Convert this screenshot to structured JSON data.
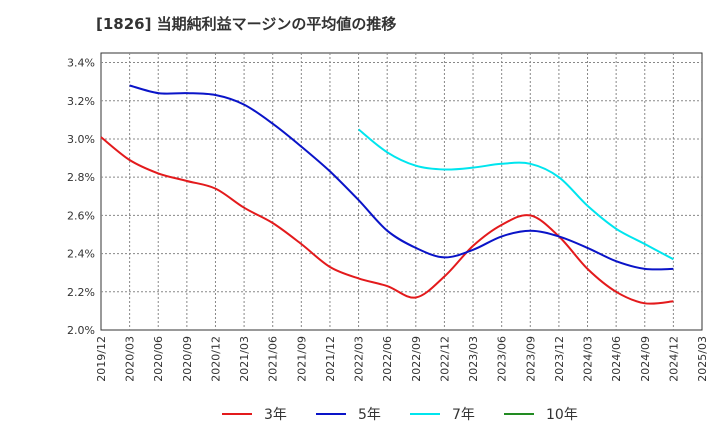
{
  "chart_data": {
    "type": "line",
    "title": "[1826]  当期純利益マージンの平均値の推移",
    "xlabel": "",
    "ylabel": "",
    "x_ticks": [
      "2019/12",
      "2020/03",
      "2020/06",
      "2020/09",
      "2020/12",
      "2021/03",
      "2021/06",
      "2021/09",
      "2021/12",
      "2022/03",
      "2022/06",
      "2022/09",
      "2022/12",
      "2023/03",
      "2023/06",
      "2023/09",
      "2023/12",
      "2024/03",
      "2024/06",
      "2024/09",
      "2024/12",
      "2025/03"
    ],
    "y_ticks": [
      "2.0%",
      "2.2%",
      "2.4%",
      "2.6%",
      "2.8%",
      "3.0%",
      "3.2%",
      "3.4%"
    ],
    "ylim": [
      2.0,
      3.45
    ],
    "grid": true,
    "legend_position": "bottom",
    "series": [
      {
        "name": "3年",
        "color": "#e31a1c",
        "points": [
          [
            "2019/12",
            3.01
          ],
          [
            "2020/03",
            2.89
          ],
          [
            "2020/06",
            2.82
          ],
          [
            "2020/09",
            2.78
          ],
          [
            "2020/12",
            2.74
          ],
          [
            "2021/03",
            2.64
          ],
          [
            "2021/06",
            2.56
          ],
          [
            "2021/09",
            2.45
          ],
          [
            "2021/12",
            2.33
          ],
          [
            "2022/03",
            2.27
          ],
          [
            "2022/06",
            2.23
          ],
          [
            "2022/09",
            2.17
          ],
          [
            "2022/12",
            2.28
          ],
          [
            "2023/03",
            2.44
          ],
          [
            "2023/06",
            2.55
          ],
          [
            "2023/09",
            2.6
          ],
          [
            "2023/12",
            2.49
          ],
          [
            "2024/03",
            2.32
          ],
          [
            "2024/06",
            2.2
          ],
          [
            "2024/09",
            2.14
          ],
          [
            "2024/12",
            2.15
          ]
        ]
      },
      {
        "name": "5年",
        "color": "#0a14c8",
        "points": [
          [
            "2020/03",
            3.28
          ],
          [
            "2020/06",
            3.24
          ],
          [
            "2020/09",
            3.24
          ],
          [
            "2020/12",
            3.23
          ],
          [
            "2021/03",
            3.18
          ],
          [
            "2021/06",
            3.08
          ],
          [
            "2021/09",
            2.96
          ],
          [
            "2021/12",
            2.83
          ],
          [
            "2022/03",
            2.68
          ],
          [
            "2022/06",
            2.52
          ],
          [
            "2022/09",
            2.43
          ],
          [
            "2022/12",
            2.38
          ],
          [
            "2023/03",
            2.42
          ],
          [
            "2023/06",
            2.49
          ],
          [
            "2023/09",
            2.52
          ],
          [
            "2023/12",
            2.49
          ],
          [
            "2024/03",
            2.43
          ],
          [
            "2024/06",
            2.36
          ],
          [
            "2024/09",
            2.32
          ],
          [
            "2024/12",
            2.32
          ]
        ]
      },
      {
        "name": "7年",
        "color": "#00e5ee",
        "points": [
          [
            "2022/03",
            3.05
          ],
          [
            "2022/06",
            2.93
          ],
          [
            "2022/09",
            2.86
          ],
          [
            "2022/12",
            2.84
          ],
          [
            "2023/03",
            2.85
          ],
          [
            "2023/06",
            2.87
          ],
          [
            "2023/09",
            2.87
          ],
          [
            "2023/12",
            2.8
          ],
          [
            "2024/03",
            2.65
          ],
          [
            "2024/06",
            2.53
          ],
          [
            "2024/09",
            2.45
          ],
          [
            "2024/12",
            2.37
          ]
        ]
      },
      {
        "name": "10年",
        "color": "#228b22",
        "points": []
      }
    ]
  }
}
